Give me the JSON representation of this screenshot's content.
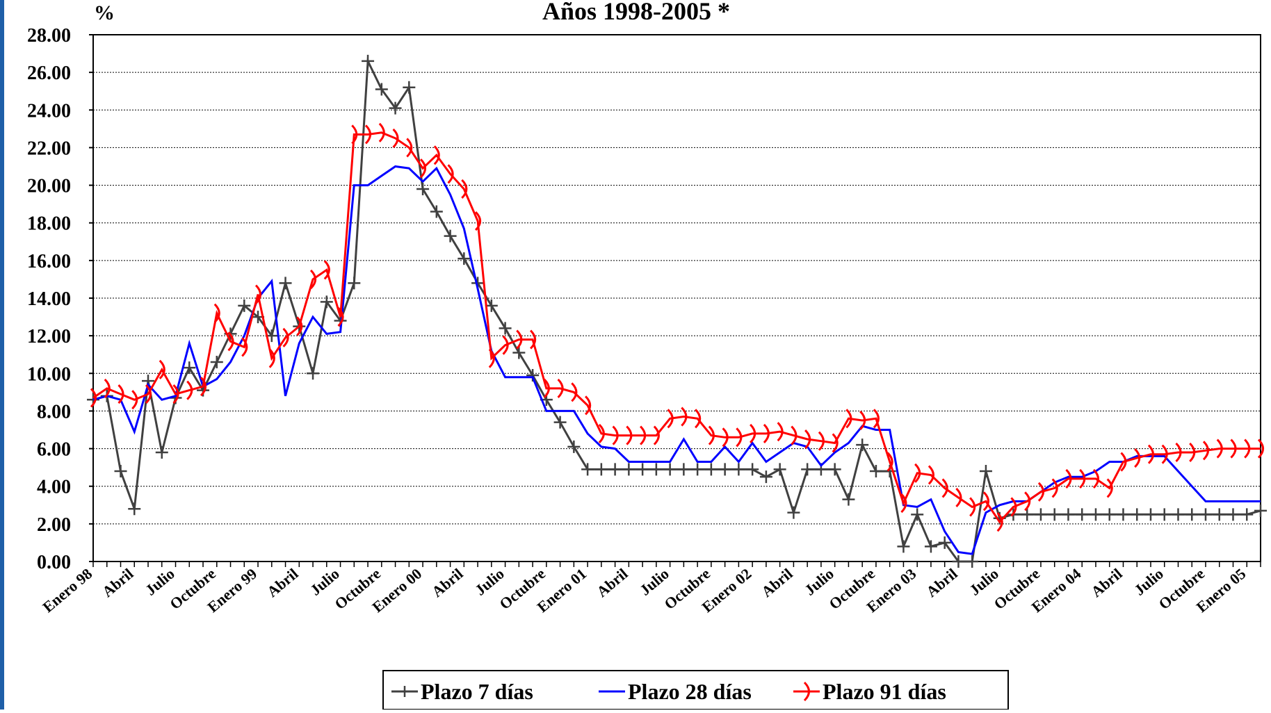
{
  "chart_data": {
    "type": "line",
    "title": "Años 1998-2005 *",
    "y_label": "%",
    "categories": [
      "Enero 98",
      null,
      null,
      "Abril",
      null,
      null,
      "Julio",
      null,
      null,
      "Octubre",
      null,
      null,
      "Enero 99",
      null,
      null,
      "Abril",
      null,
      null,
      "Julio",
      null,
      null,
      "Octubre",
      null,
      null,
      "Enero 00",
      null,
      null,
      "Abril",
      null,
      null,
      "Julio",
      null,
      null,
      "Octubre",
      null,
      null,
      "Enero 01",
      null,
      null,
      "Abril",
      null,
      null,
      "Julio",
      null,
      null,
      "Octubre",
      null,
      null,
      "Enero 02",
      null,
      null,
      "Abril",
      null,
      null,
      "Julio",
      null,
      null,
      "Octubre",
      null,
      null,
      "Enero 03",
      null,
      null,
      "Abril",
      null,
      null,
      "Julio",
      null,
      null,
      "Octubre",
      null,
      null,
      "Enero 04",
      null,
      null,
      "Abril",
      null,
      null,
      "Julio",
      null,
      null,
      "Octubre",
      null,
      null,
      "Enero 05",
      null
    ],
    "series": [
      {
        "name": "Plazo 7 días",
        "color": "#404040",
        "marker": "plus",
        "values": [
          8.6,
          8.8,
          4.8,
          2.8,
          9.6,
          5.8,
          8.7,
          10.3,
          9.1,
          10.6,
          12.1,
          13.6,
          13.0,
          12.0,
          14.8,
          12.5,
          10.0,
          13.8,
          12.8,
          14.8,
          26.6,
          25.1,
          24.1,
          25.2,
          19.8,
          18.6,
          17.3,
          16.1,
          14.8,
          13.6,
          12.4,
          11.1,
          9.9,
          8.6,
          7.4,
          6.1,
          4.9,
          4.9,
          4.9,
          4.9,
          4.9,
          4.9,
          4.9,
          4.9,
          4.9,
          4.9,
          4.9,
          4.9,
          4.9,
          4.5,
          4.9,
          2.6,
          4.9,
          4.9,
          4.9,
          3.3,
          6.2,
          4.8,
          4.8,
          0.8,
          2.5,
          0.8,
          1.0,
          0.0,
          0.0,
          4.8,
          2.3,
          2.5,
          2.5,
          2.5,
          2.5,
          2.5,
          2.5,
          2.5,
          2.5,
          2.5,
          2.5,
          2.5,
          2.5,
          2.5,
          2.5,
          2.5,
          2.5,
          2.5,
          2.5,
          2.7
        ]
      },
      {
        "name": "Plazo 28 días",
        "color": "#0000ff",
        "marker": "none",
        "values": [
          8.6,
          8.8,
          8.6,
          6.9,
          9.4,
          8.6,
          8.8,
          11.6,
          9.3,
          9.7,
          10.6,
          12.0,
          14.0,
          14.9,
          8.8,
          11.6,
          13.0,
          12.1,
          12.2,
          20.0,
          20.0,
          20.5,
          21.0,
          20.9,
          20.2,
          20.9,
          19.5,
          17.7,
          14.5,
          11.2,
          9.8,
          9.8,
          9.8,
          8.0,
          8.0,
          8.0,
          6.8,
          6.1,
          6.0,
          5.3,
          5.3,
          5.3,
          5.3,
          6.5,
          5.3,
          5.3,
          6.1,
          5.3,
          6.3,
          5.3,
          5.8,
          6.3,
          6.1,
          5.1,
          5.8,
          6.3,
          7.2,
          7.0,
          7.0,
          3.0,
          2.9,
          3.3,
          1.6,
          0.5,
          0.4,
          2.6,
          3.0,
          3.2,
          3.2,
          3.7,
          4.2,
          4.5,
          4.5,
          4.8,
          5.3,
          5.3,
          5.6,
          5.6,
          5.6,
          4.8,
          4.0,
          3.2,
          3.2,
          3.2,
          3.2,
          3.2
        ]
      },
      {
        "name": "Plazo 91 días",
        "color": "#ff0000",
        "marker": "arc",
        "values": [
          8.7,
          9.2,
          8.9,
          8.6,
          8.9,
          10.2,
          8.9,
          9.1,
          9.3,
          13.2,
          11.7,
          11.4,
          14.2,
          10.8,
          11.9,
          12.5,
          15.0,
          15.5,
          13.0,
          22.7,
          22.7,
          22.8,
          22.5,
          22.0,
          20.9,
          21.6,
          20.6,
          19.8,
          18.1,
          10.8,
          11.5,
          11.8,
          11.8,
          9.2,
          9.2,
          9.0,
          8.3,
          6.8,
          6.7,
          6.7,
          6.7,
          6.7,
          7.6,
          7.7,
          7.6,
          6.7,
          6.6,
          6.6,
          6.8,
          6.8,
          6.9,
          6.7,
          6.5,
          6.4,
          6.3,
          7.6,
          7.5,
          7.6,
          5.3,
          3.1,
          4.7,
          4.6,
          3.9,
          3.4,
          2.9,
          3.2,
          2.1,
          2.9,
          3.2,
          3.7,
          3.9,
          4.4,
          4.4,
          4.4,
          3.9,
          5.3,
          5.5,
          5.7,
          5.7,
          5.8,
          5.8,
          5.9,
          6.0,
          6.0,
          6.0,
          6.0
        ]
      }
    ],
    "ylim": [
      0,
      28
    ],
    "yticks": [
      {
        "value": 0,
        "label": "0.00"
      },
      {
        "value": 2,
        "label": "2.00"
      },
      {
        "value": 4,
        "label": "4.00"
      },
      {
        "value": 6,
        "label": "6.00"
      },
      {
        "value": 8,
        "label": "8.00"
      },
      {
        "value": 10,
        "label": "10.00"
      },
      {
        "value": 12,
        "label": "12.00"
      },
      {
        "value": 14,
        "label": "14.00"
      },
      {
        "value": 16,
        "label": "16.00"
      },
      {
        "value": 18,
        "label": "18.00"
      },
      {
        "value": 20,
        "label": "20.00"
      },
      {
        "value": 22,
        "label": "22.00"
      },
      {
        "value": 24,
        "label": "24.00"
      },
      {
        "value": 26,
        "label": "26.00"
      },
      {
        "value": 28,
        "label": "28.00"
      }
    ],
    "grid": true,
    "legend": "bottom"
  }
}
